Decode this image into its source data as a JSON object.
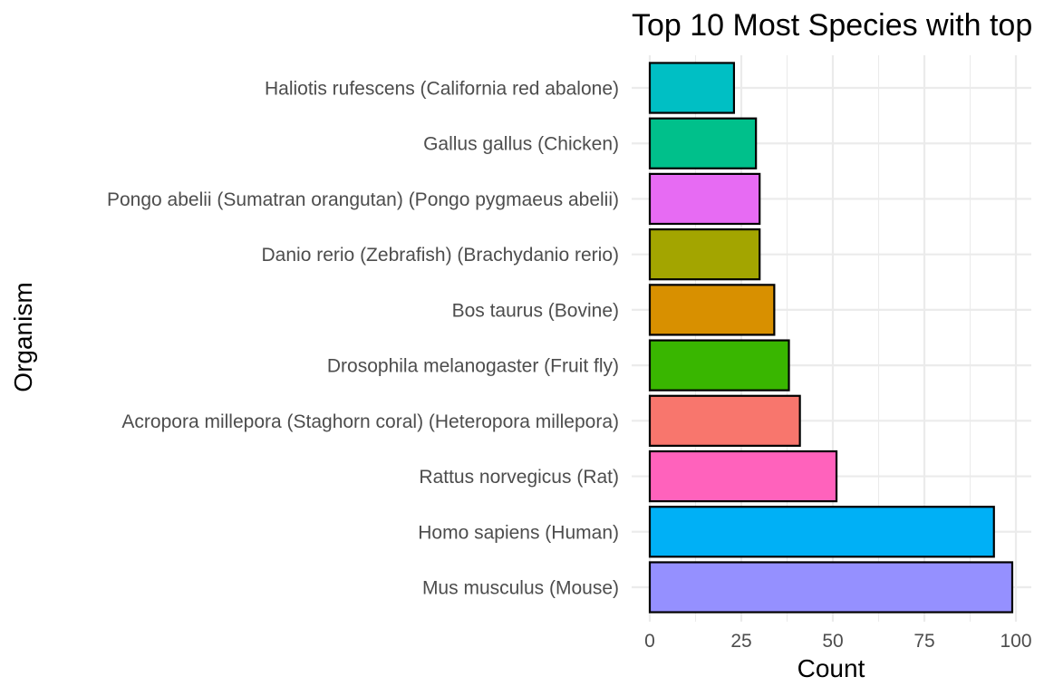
{
  "chart_data": {
    "type": "bar",
    "orientation": "horizontal",
    "title": "Top 10 Most Species with top",
    "xlabel": "Count",
    "ylabel": "Organism",
    "xlim": [
      0,
      100
    ],
    "x_ticks": [
      0,
      25,
      50,
      75,
      100
    ],
    "grid": true,
    "categories": [
      "Haliotis rufescens (California red abalone)",
      "Gallus gallus (Chicken)",
      "Pongo abelii (Sumatran orangutan) (Pongo pygmaeus abelii)",
      "Danio rerio (Zebrafish) (Brachydanio rerio)",
      "Bos taurus (Bovine)",
      "Drosophila melanogaster (Fruit fly)",
      "Acropora millepora (Staghorn coral) (Heteropora millepora)",
      "Rattus norvegicus (Rat)",
      "Homo sapiens (Human)",
      "Mus musculus (Mouse)"
    ],
    "values": [
      23,
      29,
      30,
      30,
      34,
      38,
      41,
      51,
      94,
      99
    ],
    "colors": [
      "#00BFC4",
      "#00C08B",
      "#E76BF3",
      "#A3A500",
      "#D89000",
      "#39B600",
      "#F8766D",
      "#FF62BC",
      "#00B0F6",
      "#9590FF"
    ]
  }
}
